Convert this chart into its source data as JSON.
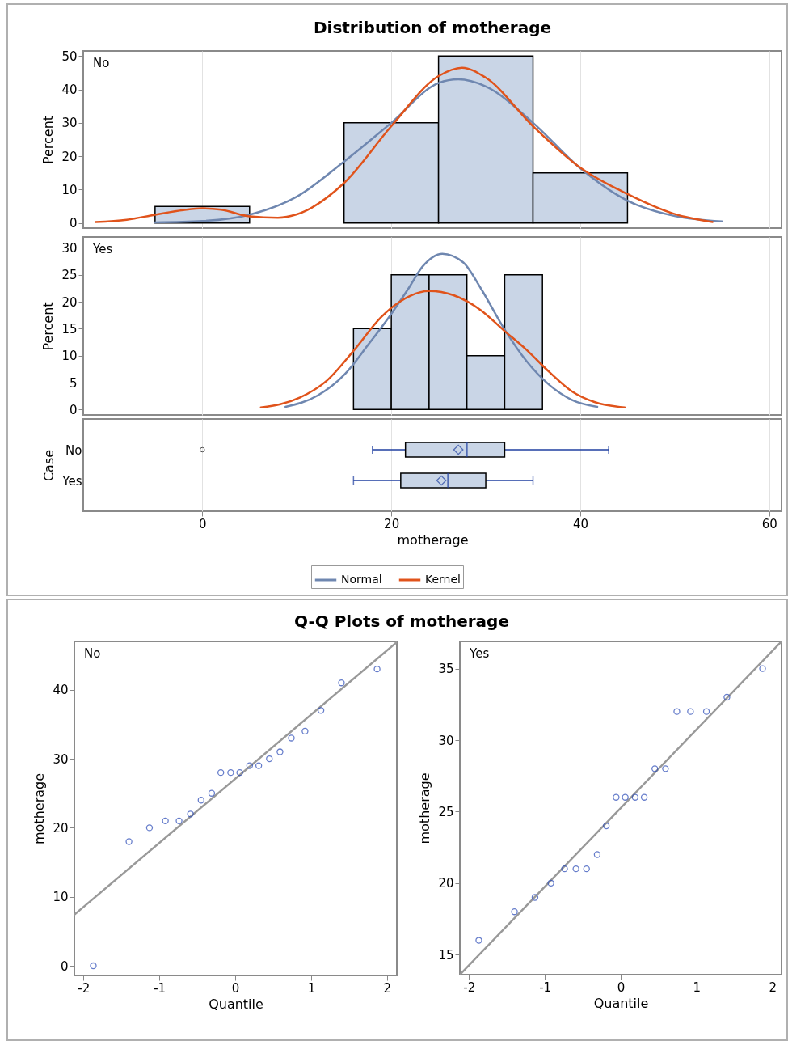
{
  "chart_data": [
    {
      "type": "histogram",
      "title": "Distribution of motherage",
      "annotations": [
        "No"
      ],
      "ylabel": "Percent",
      "bins": [
        -5,
        5,
        15,
        25,
        35,
        45
      ],
      "values": [
        5,
        0,
        30,
        50,
        15
      ],
      "color": "#c9d5e6",
      "xlim": [
        -12.6,
        61.3
      ],
      "xticks": [
        0,
        20,
        40,
        60
      ],
      "ylim": [
        -1.5,
        51.5
      ],
      "yticks": [
        0,
        10,
        20,
        30,
        40,
        50
      ],
      "grid": "x",
      "tick_labels": "y",
      "legend": "bottom",
      "series": [
        {
          "name": "Normal",
          "type": "line",
          "color": "#6f87b0",
          "x": [
            -5,
            0,
            5,
            10,
            15,
            20,
            25,
            27.1,
            30,
            35,
            40,
            45,
            50,
            55
          ],
          "values": [
            0.2,
            0.6,
            2.5,
            7.9,
            18.4,
            30,
            41.9,
            43,
            40.9,
            30,
            16.4,
            6.7,
            2.1,
            0.5
          ]
        },
        {
          "name": "Kernel",
          "type": "line",
          "color": "#e0531b",
          "x": [
            -11.3,
            -8,
            -5,
            -2,
            0,
            2,
            5,
            8,
            10,
            15,
            20,
            25,
            27.5,
            30,
            35,
            40,
            45,
            50,
            54
          ],
          "values": [
            0.3,
            1,
            2.5,
            3.9,
            4.4,
            4,
            2,
            1.6,
            2.6,
            12,
            29,
            44,
            46.5,
            43.5,
            29,
            16.6,
            8.7,
            2.7,
            0.3
          ]
        }
      ]
    },
    {
      "type": "histogram",
      "annotations": [
        "Yes"
      ],
      "ylabel": "Percent",
      "bins": [
        16,
        20,
        24,
        28,
        32,
        36
      ],
      "values": [
        15,
        25,
        25,
        10,
        25
      ],
      "color": "#c9d5e6",
      "xlim": [
        -12.6,
        61.3
      ],
      "xticks": [
        0,
        20,
        40,
        60
      ],
      "ylim": [
        -1,
        32
      ],
      "yticks": [
        0,
        5,
        10,
        15,
        20,
        25,
        30
      ],
      "grid": "x",
      "tick_labels": "y",
      "series": [
        {
          "type": "line",
          "color": "#6f87b0",
          "x": [
            8.8,
            12.2,
            15.1,
            17.5,
            19.9,
            21.8,
            23.3,
            25.4,
            27.6,
            29.5,
            31.9,
            34.3,
            36.7,
            39.1,
            41.8
          ],
          "values": [
            0.5,
            2.6,
            6.6,
            11.9,
            17.5,
            22.4,
            26.5,
            28.9,
            27.3,
            22.4,
            15.1,
            9,
            4.6,
            1.8,
            0.5
          ]
        },
        {
          "type": "line",
          "color": "#e0531b",
          "x": [
            6.2,
            10.3,
            13.2,
            16.1,
            18.9,
            20.9,
            24,
            26.6,
            29.5,
            31.9,
            34.3,
            36.7,
            39.1,
            41.5,
            44.7
          ],
          "values": [
            0.4,
            2.2,
            5.4,
            11.1,
            17.1,
            20,
            22,
            21.2,
            18.4,
            14.7,
            11.1,
            7,
            3.4,
            1.4,
            0.4
          ]
        }
      ]
    },
    {
      "type": "box",
      "orientation": "horizontal",
      "categories": [
        "No",
        "Yes"
      ],
      "color": "#c9d5e6",
      "xlabel": "motherage",
      "ylabel": "Case",
      "xlim": [
        -12.6,
        61.3
      ],
      "xticks": [
        0,
        20,
        40,
        60
      ],
      "grid": "x",
      "boxes": [
        {
          "low": 18,
          "q1": 21.5,
          "median": 28,
          "q3": 32,
          "high": 43,
          "mean": 27.1,
          "outliers": [
            0
          ]
        },
        {
          "low": 16,
          "q1": 21,
          "median": 26,
          "q3": 30,
          "high": 35,
          "mean": 25.3
        }
      ]
    },
    {
      "type": "scatter",
      "title": "Q-Q Plots of motherage",
      "annotations": [
        "No"
      ],
      "xlabel": "Quantile",
      "ylabel": "motherage",
      "xlim": [
        -2.12,
        2.13
      ],
      "xticks": [
        -2,
        -1,
        0,
        1,
        2
      ],
      "ylim": [
        -1.4,
        47
      ],
      "yticks": [
        0,
        10,
        20,
        30,
        40
      ],
      "series": [
        {
          "type": "scatter",
          "marker": "circle",
          "color": "#2546b5",
          "x": [
            -1.87,
            -1.4,
            -1.13,
            -0.92,
            -0.74,
            -0.59,
            -0.45,
            -0.31,
            -0.19,
            -0.06,
            0.06,
            0.19,
            0.31,
            0.45,
            0.59,
            0.74,
            0.92,
            1.13,
            1.4,
            1.87
          ],
          "values": [
            0,
            18,
            20,
            21,
            21,
            22,
            24,
            25,
            28,
            28,
            28,
            29,
            29,
            30,
            31,
            33,
            34,
            37,
            41,
            43
          ]
        },
        {
          "type": "line",
          "color": "#999999",
          "x": [
            -2.12,
            2.13
          ],
          "values": [
            7.4,
            46.9
          ]
        }
      ]
    },
    {
      "type": "scatter",
      "annotations": [
        "Yes"
      ],
      "xlabel": "Quantile",
      "ylabel": "motherage",
      "xlim": [
        -2.12,
        2.12
      ],
      "xticks": [
        -2,
        -1,
        0,
        1,
        2
      ],
      "ylim": [
        13.6,
        36.9
      ],
      "yticks": [
        15,
        20,
        25,
        30,
        35
      ],
      "series": [
        {
          "type": "scatter",
          "marker": "circle",
          "color": "#2546b5",
          "x": [
            -1.87,
            -1.4,
            -1.13,
            -0.92,
            -0.74,
            -0.59,
            -0.45,
            -0.31,
            -0.19,
            -0.06,
            0.06,
            0.19,
            0.31,
            0.45,
            0.59,
            0.74,
            0.92,
            1.13,
            1.4,
            1.87
          ],
          "values": [
            16,
            18,
            19,
            20,
            21,
            21,
            21,
            22,
            24,
            26,
            26,
            26,
            26,
            28,
            28,
            32,
            32,
            32,
            33,
            35
          ]
        },
        {
          "type": "line",
          "color": "#999999",
          "x": [
            -2.12,
            2.12
          ],
          "values": [
            13.6,
            36.9
          ]
        }
      ]
    }
  ]
}
